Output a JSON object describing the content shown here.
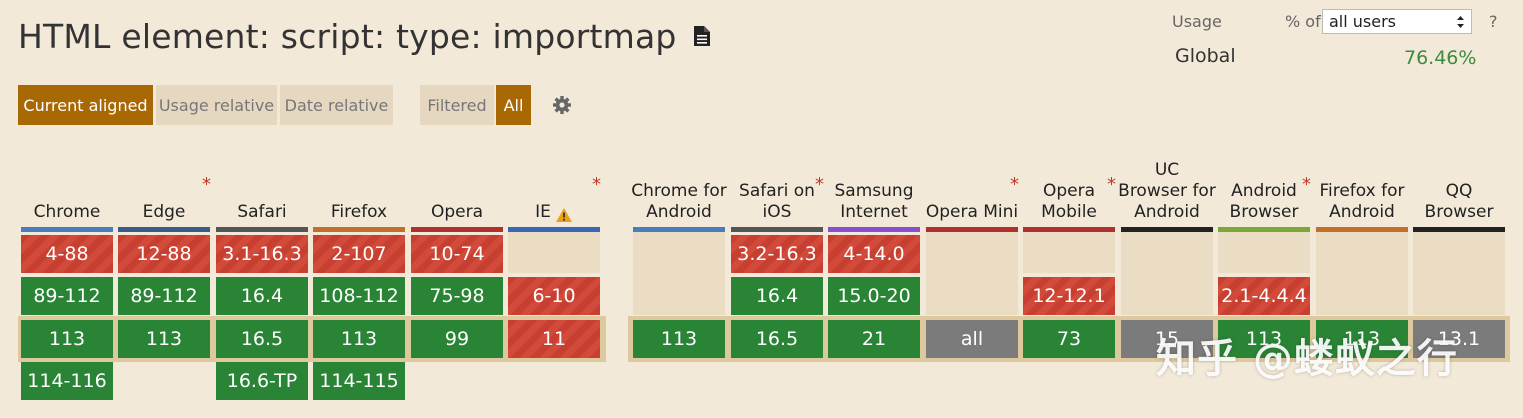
{
  "title": "HTML element: script: type: importmap",
  "usage": {
    "usage_label": "Usage",
    "pct_label": "% of",
    "select_value": "all users",
    "help": "?",
    "global_label": "Global",
    "global_value": "76.46%"
  },
  "controls": {
    "current_aligned": "Current aligned",
    "usage_relative": "Usage relative",
    "date_relative": "Date relative",
    "filtered": "Filtered",
    "all": "All"
  },
  "colors": {
    "supported": "#2a8436",
    "unsupported": "#c63f30",
    "unknown": "#7b7b7b",
    "accent": "#a86804"
  },
  "browsers": [
    {
      "key": "chrome",
      "name": "Chrome",
      "star": "",
      "bar": "#4a7cc0",
      "cells": [
        [
          "4-88",
          "n"
        ],
        [
          "89-112",
          "y"
        ],
        [
          "113",
          "y"
        ],
        [
          "114-116",
          "y"
        ]
      ]
    },
    {
      "key": "edge",
      "name": "Edge",
      "star": "*",
      "bar": "#3a5a8c",
      "cells": [
        [
          "12-88",
          "n"
        ],
        [
          "89-112",
          "y"
        ],
        [
          "113",
          "y"
        ]
      ]
    },
    {
      "key": "safari",
      "name": "Safari",
      "star": "",
      "bar": "#555555",
      "cells": [
        [
          "3.1-16.3",
          "n"
        ],
        [
          "16.4",
          "y"
        ],
        [
          "16.5",
          "y"
        ],
        [
          "16.6-TP",
          "y"
        ]
      ]
    },
    {
      "key": "firefox",
      "name": "Firefox",
      "star": "",
      "bar": "#c0702a",
      "cells": [
        [
          "2-107",
          "n"
        ],
        [
          "108-112",
          "y"
        ],
        [
          "113",
          "y"
        ],
        [
          "114-115",
          "y"
        ]
      ]
    },
    {
      "key": "opera",
      "name": "Opera",
      "star": "",
      "bar": "#b03030",
      "cells": [
        [
          "10-74",
          "n"
        ],
        [
          "75-98",
          "y"
        ],
        [
          "99",
          "y"
        ]
      ]
    },
    {
      "key": "ie",
      "name": "IE",
      "star": "*",
      "warn": true,
      "bar": "#3a68b8",
      "cells": [
        [
          "",
          "e"
        ],
        [
          "6-10",
          "n"
        ],
        [
          "11",
          "n"
        ]
      ]
    },
    {
      "key": "chrome-android",
      "name": "Chrome for Android",
      "star": "",
      "bar": "#4a7cc0",
      "cells": [
        [
          "",
          "e"
        ],
        [
          "",
          "e"
        ],
        [
          "113",
          "y"
        ]
      ]
    },
    {
      "key": "safari-ios",
      "name": "Safari on iOS",
      "star": "*",
      "bar": "#555555",
      "cells": [
        [
          "3.2-16.3",
          "n"
        ],
        [
          "16.4",
          "y"
        ],
        [
          "16.5",
          "y"
        ]
      ]
    },
    {
      "key": "samsung",
      "name": "Samsung Internet",
      "star": "",
      "bar": "#8a4fd0",
      "cells": [
        [
          "4-14.0",
          "n"
        ],
        [
          "15.0-20",
          "y"
        ],
        [
          "21",
          "y"
        ]
      ]
    },
    {
      "key": "opera-mini",
      "name": "Opera Mini",
      "star": "*",
      "bar": "#b03030",
      "cells": [
        [
          "",
          "e"
        ],
        [
          "",
          "e"
        ],
        [
          "all",
          "u"
        ]
      ]
    },
    {
      "key": "opera-mobile",
      "name": "Opera Mobile",
      "star": "*",
      "bar": "#b03030",
      "cells": [
        [
          "",
          "e"
        ],
        [
          "12-12.1",
          "n"
        ],
        [
          "73",
          "y"
        ]
      ]
    },
    {
      "key": "uc",
      "name": "UC Browser for Android",
      "star": "",
      "bar": "#222222",
      "cells": [
        [
          "",
          "e"
        ],
        [
          "",
          "e"
        ],
        [
          "15",
          "u"
        ]
      ]
    },
    {
      "key": "android",
      "name": "Android Browser",
      "star": "*",
      "bar": "#7aa83a",
      "cells": [
        [
          "",
          "e"
        ],
        [
          "2.1-4.4.4",
          "n"
        ],
        [
          "113",
          "y"
        ]
      ]
    },
    {
      "key": "firefox-android",
      "name": "Firefox for Android",
      "star": "",
      "bar": "#c0702a",
      "cells": [
        [
          "",
          "e"
        ],
        [
          "",
          "e"
        ],
        [
          "113",
          "y"
        ]
      ]
    },
    {
      "key": "qq",
      "name": "QQ Browser",
      "star": "",
      "bar": "#222222",
      "cells": [
        [
          "",
          "e"
        ],
        [
          "",
          "e"
        ],
        [
          "13.1",
          "u"
        ]
      ]
    }
  ],
  "watermark": "知乎 @蝼蚁之行"
}
